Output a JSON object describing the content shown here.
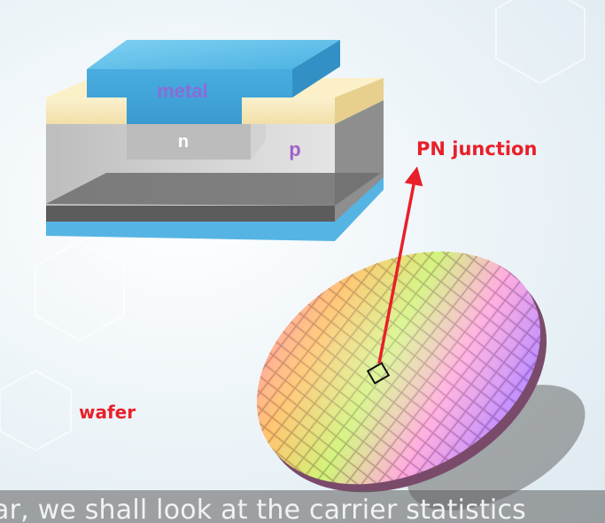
{
  "diagram": {
    "device_labels": {
      "metal": "metal",
      "n_region": "n",
      "p_region": "p"
    },
    "annotations": {
      "pn_junction": "PN junction",
      "wafer": "wafer"
    },
    "colors": {
      "metal": "#4fb3e0",
      "oxide": "#f7e8b8",
      "substrate": "#c8c8c8",
      "backside": "#55b4e4",
      "annotation": "#e8202a",
      "metal_text": "#8a6cd8",
      "p_text": "#a060c8"
    }
  },
  "subtitle": {
    "text": "ar, we shall look at the carrier statistics"
  }
}
